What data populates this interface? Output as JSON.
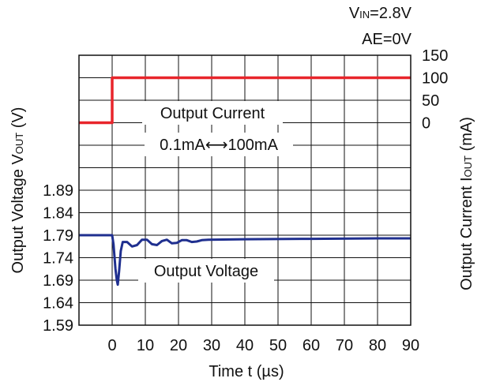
{
  "conditions": {
    "vin_label": "V",
    "vin_sub": "IN",
    "vin_value": "=2.8V",
    "ae_text": "AE=0V"
  },
  "chart_data": {
    "type": "line",
    "x": {
      "label": "Time t (µs)",
      "ticks": [
        0,
        10,
        20,
        30,
        40,
        50,
        60,
        70,
        80,
        90
      ],
      "range": [
        -10,
        90
      ]
    },
    "y_left": {
      "label_main": "Output Voltage V",
      "label_sub": "OUT",
      "label_unit": " (V)",
      "ticks": [
        1.59,
        1.64,
        1.69,
        1.74,
        1.79,
        1.84,
        1.89
      ],
      "range": [
        1.59,
        1.84
      ]
    },
    "y_right": {
      "label_main": "Output Current I",
      "label_sub": "OUT",
      "label_unit": " (mA)",
      "ticks": [
        0,
        50,
        100,
        150
      ],
      "range": [
        -400,
        150
      ]
    },
    "grid": true,
    "annotations": {
      "current": "Output Current",
      "current_range": "0.1mA⟷100mA",
      "voltage": "Output Voltage"
    },
    "series": [
      {
        "name": "Output Current",
        "color": "#e8252b",
        "axis": "right",
        "points": [
          [
            -10,
            0
          ],
          [
            0,
            0
          ],
          [
            0,
            100
          ],
          [
            90,
            100
          ]
        ]
      },
      {
        "name": "Output Voltage",
        "color": "#1f2f8f",
        "axis": "left",
        "points": [
          [
            -10,
            1.79
          ],
          [
            0,
            1.79
          ],
          [
            0.4,
            1.77
          ],
          [
            1,
            1.715
          ],
          [
            1.4,
            1.69
          ],
          [
            1.7,
            1.68
          ],
          [
            2.1,
            1.71
          ],
          [
            2.6,
            1.755
          ],
          [
            3.2,
            1.775
          ],
          [
            4.5,
            1.775
          ],
          [
            6,
            1.765
          ],
          [
            7.5,
            1.768
          ],
          [
            9,
            1.78
          ],
          [
            10.5,
            1.78
          ],
          [
            12,
            1.77
          ],
          [
            13.5,
            1.768
          ],
          [
            15,
            1.777
          ],
          [
            16.5,
            1.78
          ],
          [
            18,
            1.772
          ],
          [
            19.5,
            1.773
          ],
          [
            21,
            1.779
          ],
          [
            22.5,
            1.779
          ],
          [
            24,
            1.775
          ],
          [
            25.5,
            1.776
          ],
          [
            27,
            1.779
          ],
          [
            29,
            1.78
          ],
          [
            40,
            1.781
          ],
          [
            60,
            1.782
          ],
          [
            80,
            1.783
          ],
          [
            90,
            1.783
          ]
        ]
      }
    ]
  }
}
